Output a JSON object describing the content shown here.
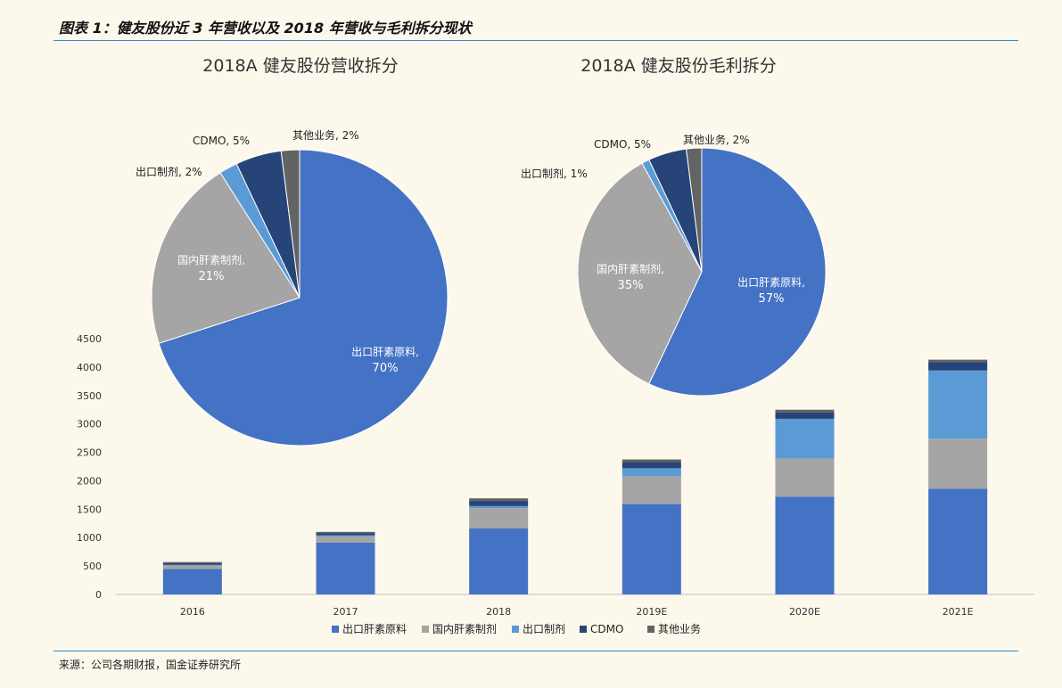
{
  "figure": {
    "title": "图表 1：健友股份近 3 年营收以及 2018 年营收与毛利拆分现状",
    "source": "来源：公司各期财报，国金证券研究所"
  },
  "colors": {
    "series": [
      "#4472c4",
      "#a5a5a5",
      "#5b9bd5",
      "#264478",
      "#636363"
    ],
    "rule": "#2b8fd0",
    "background": "#fdf8ec"
  },
  "chart_data": [
    {
      "type": "bar",
      "stacked": true,
      "categories": [
        "2016",
        "2017",
        "2018",
        "2019E",
        "2020E",
        "2021E"
      ],
      "series": [
        {
          "name": "出口肝素原料",
          "values": [
            450,
            910,
            1160,
            1590,
            1720,
            1860
          ]
        },
        {
          "name": "国内肝素制剂",
          "values": [
            60,
            110,
            360,
            490,
            670,
            880
          ]
        },
        {
          "name": "出口制剂",
          "values": [
            10,
            20,
            35,
            140,
            700,
            1200
          ]
        },
        {
          "name": "CDMO",
          "values": [
            30,
            40,
            90,
            110,
            110,
            150
          ]
        },
        {
          "name": "其他业务",
          "values": [
            20,
            20,
            45,
            45,
            50,
            40
          ]
        }
      ],
      "ylim": [
        0,
        4500
      ],
      "yticks": [
        0,
        500,
        1000,
        1500,
        2000,
        2500,
        3000,
        3500,
        4000,
        4500
      ],
      "grid": false,
      "legend": "bottom"
    },
    {
      "type": "pie",
      "title": "2018A 健友股份营收拆分",
      "labels": [
        "出口肝素原料",
        "国内肝素制剂",
        "出口制剂",
        "CDMO",
        "其他业务"
      ],
      "values": [
        70,
        21,
        2,
        5,
        2
      ],
      "value_labels": [
        "70%",
        "21%",
        "2%",
        "5%",
        "2%"
      ]
    },
    {
      "type": "pie",
      "title": "2018A 健友股份毛利拆分",
      "labels": [
        "出口肝素原料",
        "国内肝素制剂",
        "出口制剂",
        "CDMO",
        "其他业务"
      ],
      "values": [
        57,
        35,
        1,
        5,
        2
      ],
      "value_labels": [
        "57%",
        "35%",
        "1%",
        "5%",
        "2%"
      ]
    }
  ]
}
